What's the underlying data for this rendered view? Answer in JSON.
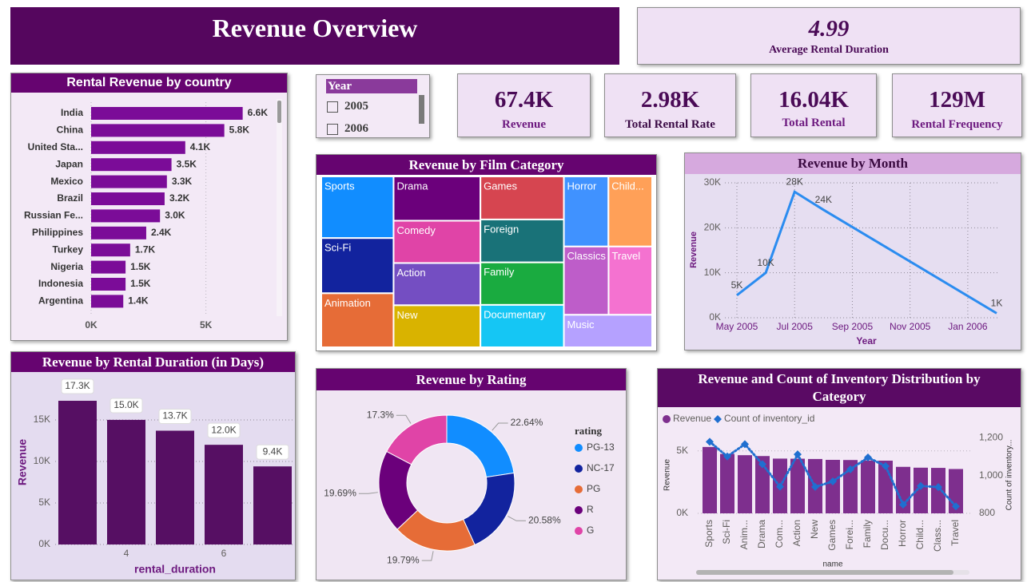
{
  "title": "Revenue Overview",
  "cards": [
    {
      "value": "4.99",
      "label": "Average Rental Duration"
    },
    {
      "value": "67.4K",
      "label": "Revenue"
    },
    {
      "value": "2.98K",
      "label": "Total Rental Rate"
    },
    {
      "value": "16.04K",
      "label": "Total Rental"
    },
    {
      "value": "129M",
      "label": "Rental Frequency"
    }
  ],
  "slicer": {
    "title": "Year",
    "options": [
      "2005",
      "2006"
    ]
  },
  "chart_data": [
    {
      "type": "hbar",
      "title": "Rental Revenue by country",
      "categories": [
        "India",
        "China",
        "United Sta...",
        "Japan",
        "Mexico",
        "Brazil",
        "Russian Fe...",
        "Philippines",
        "Turkey",
        "Nigeria",
        "Indonesia",
        "Argentina"
      ],
      "values": [
        6600,
        5800,
        4100,
        3500,
        3300,
        3200,
        3000,
        2400,
        1700,
        1500,
        1500,
        1400
      ],
      "value_labels": [
        "6.6K",
        "5.8K",
        "4.1K",
        "3.5K",
        "3.3K",
        "3.2K",
        "3.0K",
        "2.4K",
        "1.7K",
        "1.5K",
        "1.5K",
        "1.4K"
      ],
      "color": "#7B0C98",
      "xlim": [
        0,
        7900
      ],
      "xticks": [
        {
          "value": 0,
          "label": "0K"
        },
        {
          "value": 5000,
          "label": "5K"
        }
      ],
      "grid": true
    },
    {
      "type": "treemap",
      "title": "Revenue by Film Category",
      "categories": [
        "Sports",
        "Sci-Fi",
        "Animation",
        "Drama",
        "Comedy",
        "Action",
        "New",
        "Games",
        "Foreign",
        "Family",
        "Documentary",
        "Horror",
        "Child...",
        "Classics",
        "Travel",
        "Music"
      ],
      "values": [
        5314,
        4756,
        4656,
        4587,
        4383,
        4375,
        4351,
        4282,
        4270,
        4226,
        4217,
        3722,
        3655,
        3639,
        3549,
        3418
      ],
      "colors": [
        "#118DFF",
        "#12239E",
        "#E66C37",
        "#6B007B",
        "#E044A7",
        "#744EC2",
        "#D9B300",
        "#D64550",
        "#197278",
        "#1AAB40",
        "#15C6F4",
        "#4092FF",
        "#FFA058",
        "#BE5DC9",
        "#F472D0",
        "#B5A1FF"
      ]
    },
    {
      "type": "line",
      "title": "Revenue by Month",
      "x": [
        "2005-05",
        "2005-06",
        "2005-07",
        "2005-08",
        "2006-02"
      ],
      "values": [
        5000,
        10000,
        28000,
        24000,
        1000
      ],
      "value_labels": [
        "5K",
        "10K",
        "28K",
        "24K",
        "1K"
      ],
      "color": "#2B8CF0",
      "x_label": "Year",
      "y_label": "Revenue",
      "xlim": [
        "2005-05",
        "2006-02"
      ],
      "xticks": [
        {
          "value": "2005-05",
          "label": "May 2005"
        },
        {
          "value": "2005-07",
          "label": "Jul 2005"
        },
        {
          "value": "2005-09",
          "label": "Sep 2005"
        },
        {
          "value": "2005-11",
          "label": "Nov 2005"
        },
        {
          "value": "2006-01",
          "label": "Jan 2006"
        }
      ],
      "ylim": [
        0,
        30000
      ],
      "yticks": [
        {
          "value": 0,
          "label": "0K"
        },
        {
          "value": 10000,
          "label": "10K"
        },
        {
          "value": 20000,
          "label": "20K"
        },
        {
          "value": 30000,
          "label": "30K"
        }
      ],
      "grid": true
    },
    {
      "type": "column",
      "title": "Revenue by Rental Duration (in Days)",
      "x": [
        3,
        4,
        5,
        6,
        7
      ],
      "values": [
        17300,
        15000,
        13700,
        12000,
        9400
      ],
      "value_labels": [
        "17.3K",
        "15.0K",
        "13.7K",
        "12.0K",
        "9.4K"
      ],
      "color": "#560F63",
      "x_label": "rental_duration",
      "y_label": "Revenue",
      "xlim": [
        2.5,
        7.5
      ],
      "xticks": [
        4,
        6
      ],
      "ylim": [
        0,
        19800
      ],
      "yticks": [
        {
          "value": 0,
          "label": "0K"
        },
        {
          "value": 5000,
          "label": "5K"
        },
        {
          "value": 10000,
          "label": "10K"
        },
        {
          "value": 15000,
          "label": "15K"
        }
      ],
      "grid": true
    },
    {
      "type": "donut",
      "title": "Revenue by Rating",
      "legend_title": "rating",
      "categories": [
        "PG-13",
        "NC-17",
        "PG",
        "R",
        "G"
      ],
      "values": [
        22.64,
        20.58,
        19.79,
        19.69,
        17.3
      ],
      "value_labels": [
        "22.64%",
        "20.58%",
        "19.79%",
        "19.69%",
        "17.3%"
      ],
      "colors": [
        "#118DFF",
        "#12239E",
        "#E66C37",
        "#6B007B",
        "#E044A7"
      ]
    },
    {
      "type": "combo",
      "title": "Revenue and Count of Inventory Distribution by Category",
      "categories": [
        "Sports",
        "Sci-Fi",
        "Anim...",
        "Drama",
        "Com...",
        "Action",
        "New",
        "Games",
        "Forei...",
        "Family",
        "Docu...",
        "Horror",
        "Child...",
        "Class...",
        "Travel"
      ],
      "series": [
        {
          "name": "Revenue",
          "color": "#7E2F8E",
          "values": [
            5314,
            4756,
            4656,
            4587,
            4383,
            4375,
            4351,
            4282,
            4270,
            4226,
            4217,
            3722,
            3655,
            3639,
            3549
          ]
        },
        {
          "name": "Count of inventory_id",
          "color": "#1F6FD0",
          "axis": "y2",
          "values": [
            1179,
            1101,
            1166,
            1060,
            941,
            1112,
            940,
            969,
            1033,
            1096,
            1050,
            846,
            945,
            939,
            837
          ]
        }
      ],
      "x_label": "name",
      "y_label": "Revenue",
      "y2_label": "Count of inventory...",
      "ylim": [
        0,
        6200
      ],
      "yticks": [
        {
          "value": 0,
          "label": "0K"
        },
        {
          "value": 5000,
          "label": "5K"
        }
      ],
      "y2lim": [
        800,
        1210
      ],
      "y2ticks": [
        800,
        {
          "value": 1000,
          "label": "1,000"
        },
        {
          "value": 1200,
          "label": "1,200"
        }
      ],
      "grid": true
    }
  ]
}
